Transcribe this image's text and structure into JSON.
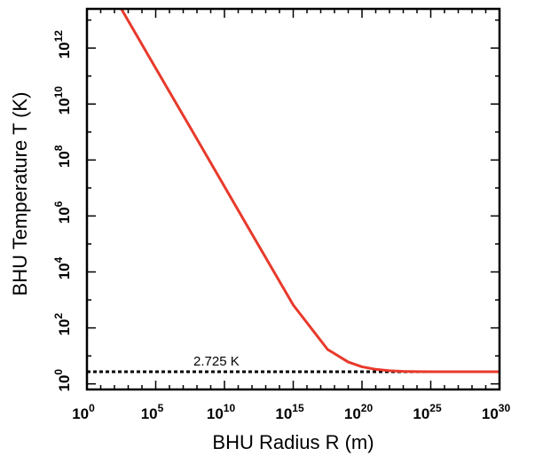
{
  "chart_data": {
    "type": "line",
    "title": "",
    "xlabel": "BHU Radius R (m)",
    "ylabel": "BHU Temperature T (K)",
    "xscale": "log",
    "yscale": "log",
    "xlim_log10": [
      0,
      30
    ],
    "ylim_log10": [
      -0.2,
      13.4
    ],
    "x_ticks": [
      {
        "base": "10",
        "exp": "0",
        "log10": 0
      },
      {
        "base": "10",
        "exp": "5",
        "log10": 5
      },
      {
        "base": "10",
        "exp": "10",
        "log10": 10
      },
      {
        "base": "10",
        "exp": "15",
        "log10": 15
      },
      {
        "base": "10",
        "exp": "20",
        "log10": 20
      },
      {
        "base": "10",
        "exp": "25",
        "log10": 25
      },
      {
        "base": "10",
        "exp": "30",
        "log10": 30
      }
    ],
    "y_ticks": [
      {
        "base": "10",
        "exp": "0",
        "log10": 0
      },
      {
        "base": "10",
        "exp": "2",
        "log10": 2
      },
      {
        "base": "10",
        "exp": "4",
        "log10": 4
      },
      {
        "base": "10",
        "exp": "6",
        "log10": 6
      },
      {
        "base": "10",
        "exp": "8",
        "log10": 8
      },
      {
        "base": "10",
        "exp": "10",
        "log10": 10
      },
      {
        "base": "10",
        "exp": "12",
        "log10": 12
      }
    ],
    "series": [
      {
        "color": "#e8392b",
        "style": "solid",
        "x_log10": [
          2.5,
          5,
          7.5,
          10,
          12.5,
          15,
          17.5,
          19,
          20,
          21,
          22,
          23,
          24,
          25,
          26,
          27,
          28,
          30
        ],
        "y_log10": [
          13.4,
          11.28,
          9.17,
          7.05,
          4.93,
          2.82,
          1.23,
          0.78,
          0.61,
          0.52,
          0.47,
          0.445,
          0.437,
          0.436,
          0.435,
          0.435,
          0.435,
          0.435
        ]
      }
    ],
    "reference_line": {
      "label": "2.725 K",
      "y": 2.725,
      "color": "#000000",
      "style": "dotted"
    },
    "grid": false,
    "legend": "none"
  }
}
